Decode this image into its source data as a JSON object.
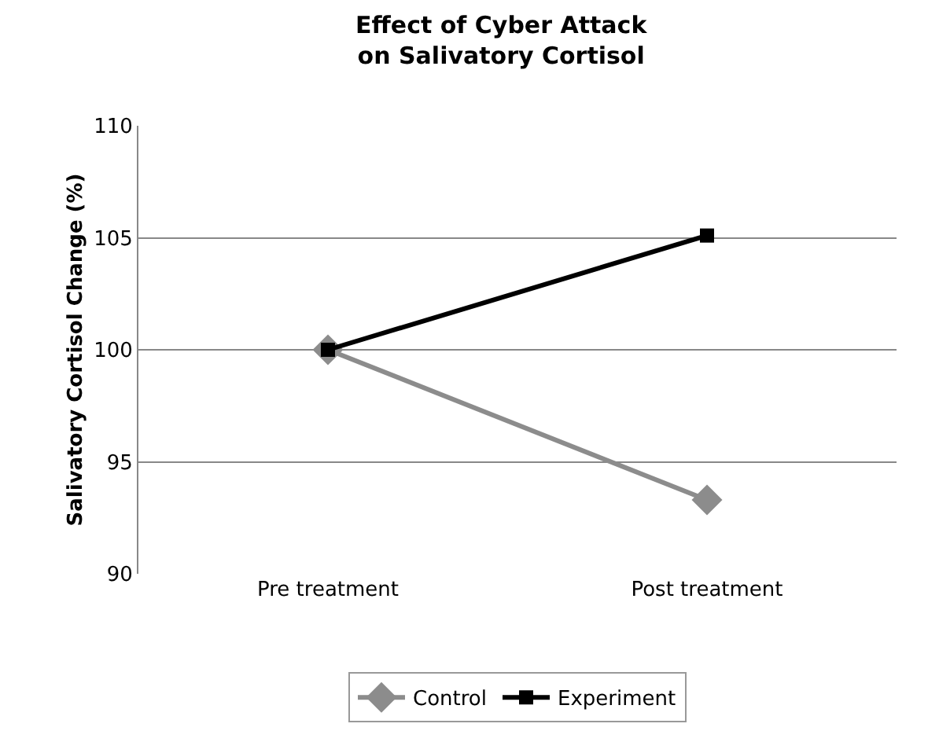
{
  "chart_data": {
    "type": "line",
    "title": "Effect of Cyber Attack\non Salivatory Cortisol",
    "ylabel": "Salivatory Cortisol Change (%)",
    "categories": [
      "Pre treatment",
      "Post treatment"
    ],
    "series": [
      {
        "name": "Control",
        "color": "#8c8c8c",
        "values": [
          100,
          93.3
        ],
        "marker": "diamond"
      },
      {
        "name": "Experiment",
        "color": "#000000",
        "values": [
          100,
          105.1
        ],
        "marker": "square"
      }
    ],
    "ylim": [
      90,
      110
    ],
    "yticks": [
      90,
      95,
      100,
      105,
      110
    ],
    "grid": "y",
    "legend": "bottom",
    "line_style": "solid"
  }
}
